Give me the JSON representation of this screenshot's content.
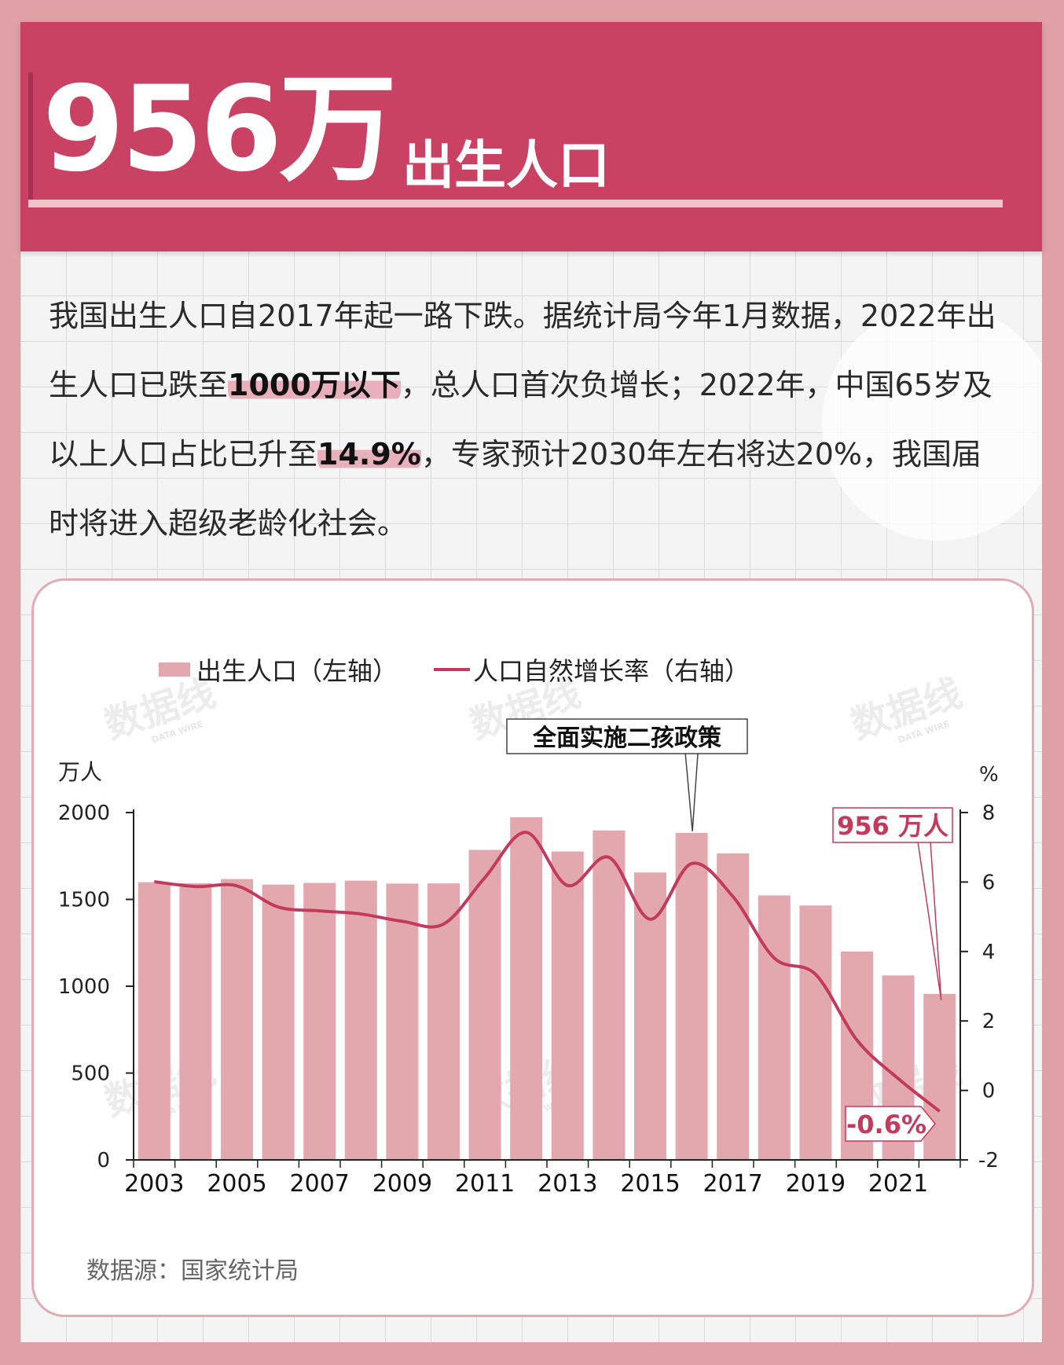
{
  "header": {
    "hero_number": "956万",
    "hero_label": "出生人口"
  },
  "intro": {
    "part1": "我国出生人口自2017年起一路下跌。据统计局今年1月数据，2022年出生人口已跌至",
    "highlight1": "1000万以下",
    "part2": "，总人口首次负增长；2022年，中国65岁及以上人口占比已升至",
    "highlight2": "14.9%",
    "part3": "，专家预计2030年左右将达20%，我国届时将进入超级老龄化社会。"
  },
  "watermark": {
    "text": "数据线",
    "sub": "DATA WIRE"
  },
  "source": "数据源：国家统计局",
  "colors": {
    "bar": "#e3a8ad",
    "line": "#c23a5c",
    "header": "#c94163",
    "axis": "#222222"
  },
  "chart_data": {
    "type": "bar",
    "title": "",
    "legend": [
      "出生人口（左轴）",
      "人口自然增长率（右轴）"
    ],
    "legend_position": "top-left",
    "y_left_label": "万人",
    "y_right_label": "%",
    "ylim_left": [
      0,
      2000
    ],
    "ylim_right": [
      -2,
      8
    ],
    "yticks_left": [
      0,
      500,
      1000,
      1500,
      2000
    ],
    "yticks_right": [
      -2,
      0,
      2,
      4,
      6,
      8
    ],
    "categories": [
      "2003",
      "2004",
      "2005",
      "2006",
      "2007",
      "2008",
      "2009",
      "2010",
      "2011",
      "2012",
      "2013",
      "2014",
      "2015",
      "2016",
      "2017",
      "2018",
      "2019",
      "2020",
      "2021",
      "2022"
    ],
    "xtick_labels": [
      "2003",
      "2005",
      "2007",
      "2009",
      "2011",
      "2013",
      "2015",
      "2017",
      "2019",
      "2021"
    ],
    "series": [
      {
        "name": "出生人口（左轴）",
        "axis": "left",
        "kind": "bar",
        "values": [
          1599,
          1593,
          1617,
          1585,
          1595,
          1608,
          1591,
          1592,
          1785,
          1973,
          1776,
          1897,
          1655,
          1883,
          1765,
          1523,
          1465,
          1200,
          1062,
          956
        ]
      },
      {
        "name": "人口自然增长率（右轴）",
        "axis": "right",
        "kind": "line",
        "values": [
          6.01,
          5.87,
          5.89,
          5.28,
          5.17,
          5.08,
          4.87,
          4.79,
          6.13,
          7.43,
          5.9,
          6.71,
          4.93,
          6.53,
          5.58,
          3.81,
          3.34,
          1.45,
          0.34,
          -0.6
        ]
      }
    ],
    "annotations": [
      {
        "text": "全面实施二孩政策",
        "category": "2016"
      },
      {
        "text": "956 万人",
        "category": "2022"
      },
      {
        "text": "-0.6%",
        "category": "2022"
      }
    ]
  }
}
